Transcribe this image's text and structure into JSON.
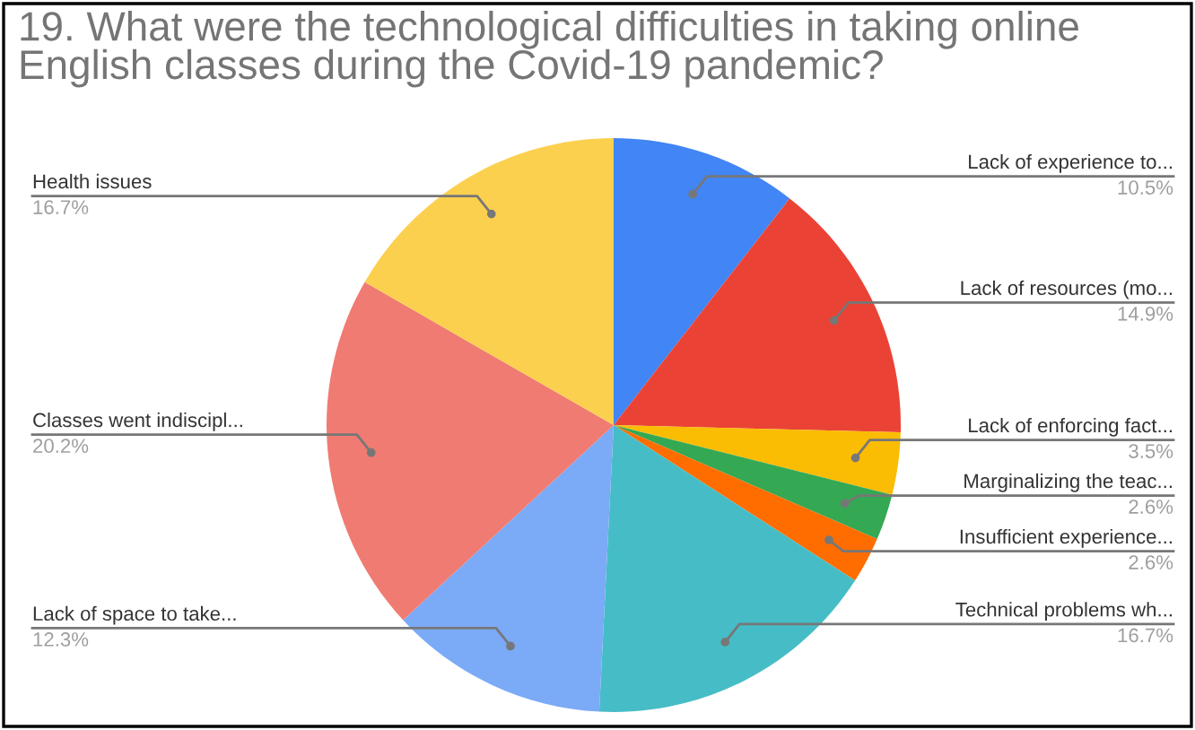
{
  "chart_data": {
    "type": "pie",
    "title": "19. What were the technological difficulties in taking online English classes during the Covid-19 pandemic?",
    "categories": [
      "Lack of experience to...",
      "Lack of resources (mo...",
      "Lack of enforcing fact...",
      "Marginalizing the teac...",
      "Insufficient experience...",
      "Technical problems wh...",
      "Lack of space to take...",
      "Classes went indiscipl...",
      "Health issues"
    ],
    "values": [
      10.5,
      14.9,
      3.5,
      2.6,
      2.6,
      16.7,
      12.3,
      20.2,
      16.7
    ],
    "value_labels": [
      "10.5%",
      "14.9%",
      "3.5%",
      "2.6%",
      "2.6%",
      "16.7%",
      "12.3%",
      "20.2%",
      "16.7%"
    ],
    "colors": [
      "#4285f4",
      "#ea4335",
      "#fbbc04",
      "#34a853",
      "#ff6d01",
      "#46bdc6",
      "#7baaf7",
      "#f07b72",
      "#fcd04f"
    ]
  }
}
